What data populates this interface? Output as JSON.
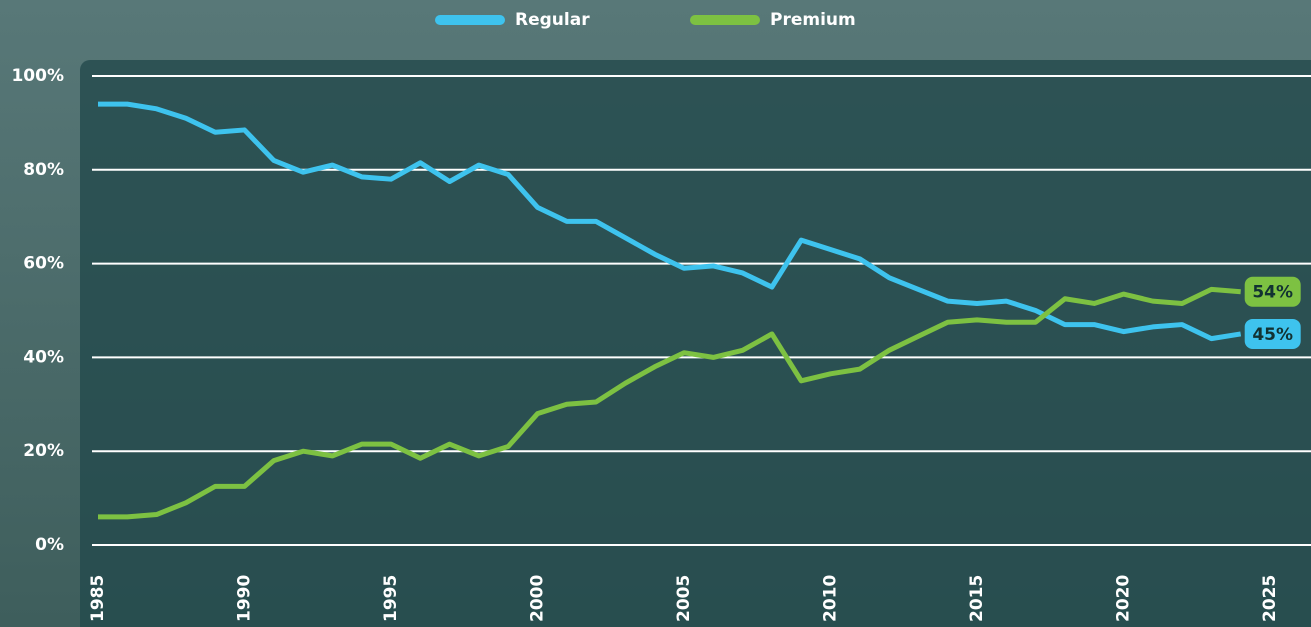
{
  "chart_data": {
    "type": "line",
    "x": [
      1985,
      1986,
      1987,
      1988,
      1989,
      1990,
      1991,
      1992,
      1993,
      1994,
      1995,
      1996,
      1997,
      1998,
      1999,
      2000,
      2001,
      2002,
      2003,
      2004,
      2005,
      2006,
      2007,
      2008,
      2009,
      2010,
      2011,
      2012,
      2013,
      2014,
      2015,
      2016,
      2017,
      2018,
      2019,
      2020,
      2021,
      2022,
      2023,
      2024
    ],
    "series": [
      {
        "name": "Regular",
        "color": "#3ec3ee",
        "values": [
          94,
          94,
          93,
          91,
          88,
          88.5,
          82,
          79.5,
          81,
          78.5,
          78,
          81.5,
          77.5,
          81,
          79,
          72,
          69,
          69,
          65.5,
          62,
          59,
          59.5,
          58,
          55,
          65,
          63,
          61,
          57,
          54.5,
          52,
          51.5,
          52,
          50,
          47,
          47,
          45.5,
          46.5,
          47,
          44,
          45
        ],
        "value_labels": [
          null,
          null,
          null,
          null,
          null,
          null,
          null,
          null,
          null,
          null,
          null,
          null,
          null,
          null,
          null,
          null,
          null,
          null,
          null,
          null,
          null,
          null,
          null,
          null,
          null,
          null,
          null,
          null,
          null,
          null,
          null,
          null,
          null,
          null,
          null,
          null,
          null,
          null,
          null,
          "45%"
        ]
      },
      {
        "name": "Premium",
        "color": "#7dc142",
        "values": [
          6,
          6,
          6.5,
          9,
          12.5,
          12.5,
          18,
          20,
          19,
          21.5,
          21.5,
          18.5,
          21.5,
          19,
          21,
          28,
          30,
          30.5,
          34.5,
          38,
          41,
          40,
          41.5,
          45,
          35,
          36.5,
          37.5,
          41.5,
          44.5,
          47.5,
          48,
          47.5,
          47.5,
          52.5,
          51.5,
          53.5,
          52,
          51.5,
          54.5,
          54
        ],
        "value_labels": [
          null,
          null,
          null,
          null,
          null,
          null,
          null,
          null,
          null,
          null,
          null,
          null,
          null,
          null,
          null,
          null,
          null,
          null,
          null,
          null,
          null,
          null,
          null,
          null,
          null,
          null,
          null,
          null,
          null,
          null,
          null,
          null,
          null,
          null,
          null,
          null,
          null,
          null,
          null,
          "54%"
        ]
      }
    ],
    "xlim": [
      1985,
      2025
    ],
    "xticks": [
      1985,
      1990,
      1995,
      2000,
      2005,
      2010,
      2015,
      2020,
      2025
    ],
    "ylim": [
      0,
      100
    ],
    "yticks": [
      {
        "value": 0,
        "label": "0%"
      },
      {
        "value": 20,
        "label": "20%"
      },
      {
        "value": 40,
        "label": "40%"
      },
      {
        "value": 60,
        "label": "60%"
      },
      {
        "value": 80,
        "label": "80%"
      },
      {
        "value": 100,
        "label": "100%"
      }
    ],
    "grid": true
  }
}
